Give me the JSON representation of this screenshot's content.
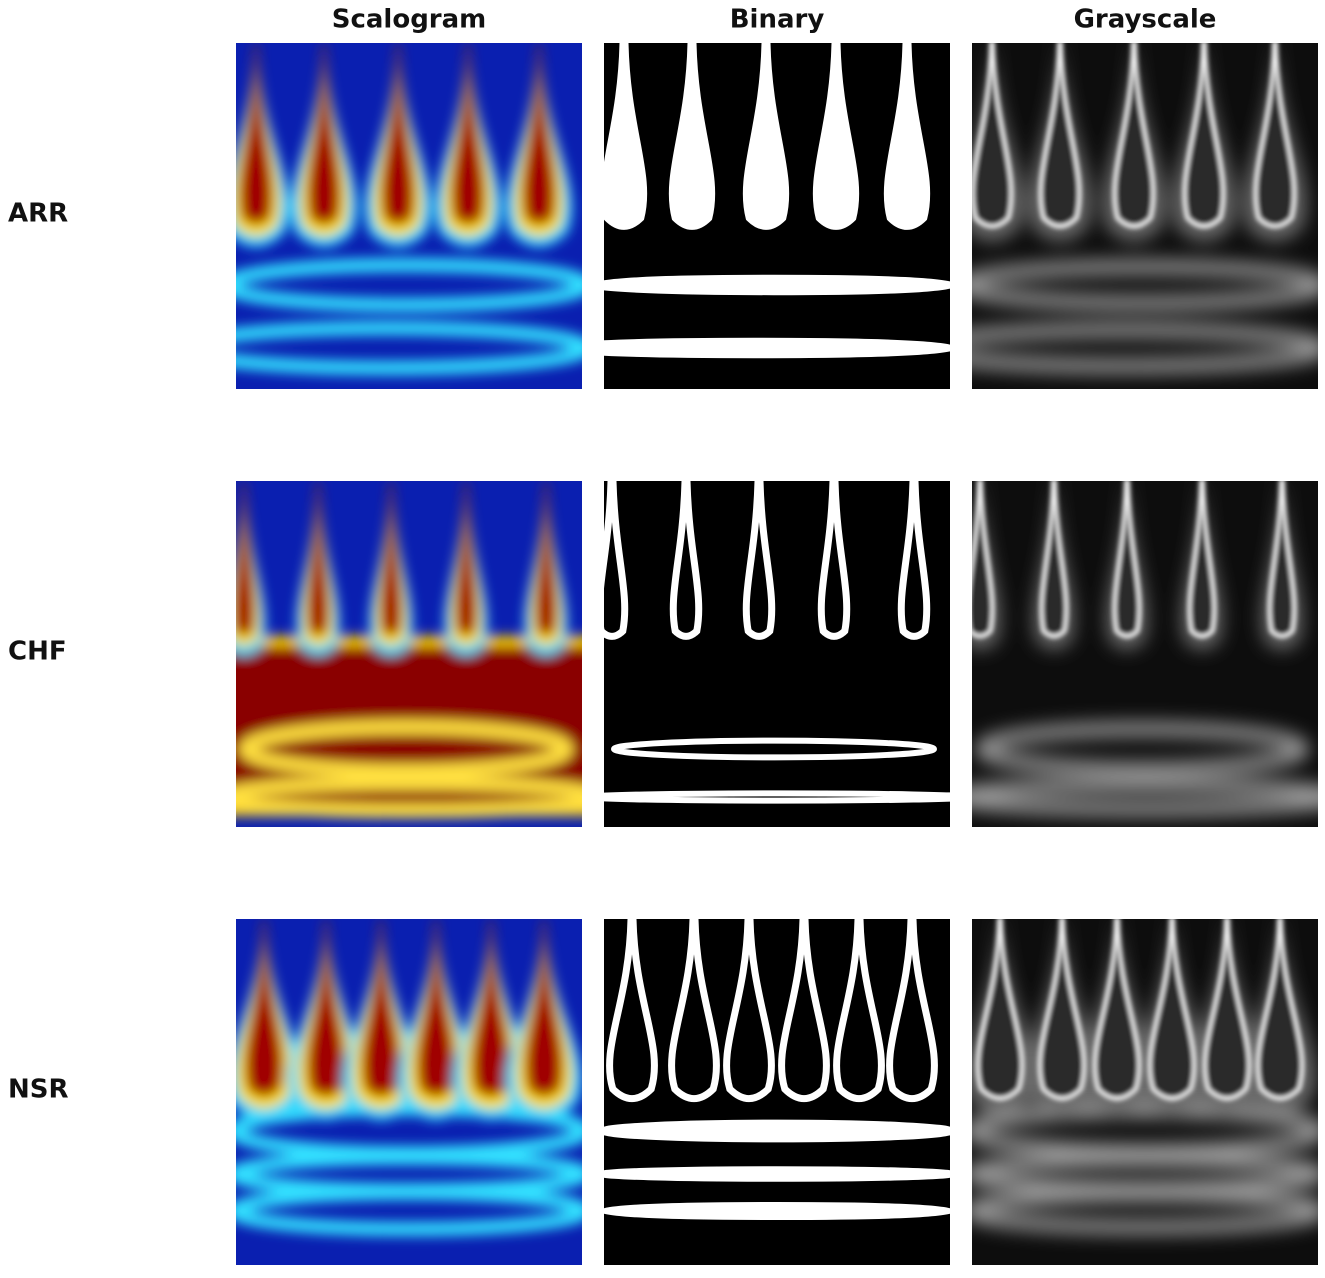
{
  "columns": [
    "Scalogram",
    "Binary",
    "Grayscale"
  ],
  "rows": [
    "ARR",
    "CHF",
    "NSR"
  ]
}
